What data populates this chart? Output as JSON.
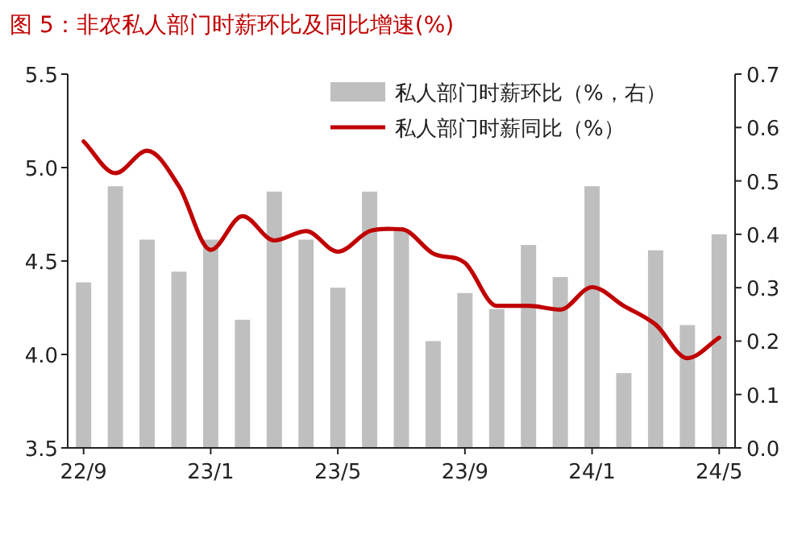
{
  "chart_data": {
    "type": "bar",
    "title": "图 5：非农私人部门时薪环比及同比增速(%)",
    "categories": [
      "22/9",
      null,
      null,
      null,
      "23/1",
      null,
      null,
      null,
      "23/5",
      null,
      null,
      null,
      "23/9",
      null,
      null,
      null,
      "24/1",
      null,
      null,
      null,
      "24/5"
    ],
    "series": [
      {
        "name": "私人部门时薪环比（%，右）",
        "axis": "y2",
        "color": "#bfbfbf",
        "values": [
          0.31,
          0.49,
          0.39,
          0.33,
          0.39,
          0.24,
          0.48,
          0.39,
          0.3,
          0.48,
          0.41,
          0.2,
          0.29,
          0.26,
          0.38,
          0.32,
          0.49,
          0.14,
          0.37,
          0.23,
          0.4
        ]
      },
      {
        "name": "私人部门时薪同比（%）",
        "type": "line",
        "axis": "y",
        "color": "#c00000",
        "values": [
          5.14,
          4.97,
          5.09,
          4.9,
          4.56,
          4.74,
          4.61,
          4.66,
          4.55,
          4.66,
          4.67,
          4.54,
          4.49,
          4.26,
          4.26,
          4.24,
          4.36,
          4.26,
          4.16,
          3.98,
          4.09
        ]
      }
    ],
    "ylim": [
      3.5,
      5.5
    ],
    "yticks": [
      {
        "value": 3.5,
        "label": "3.5"
      },
      {
        "value": 4,
        "label": "4.0"
      },
      {
        "value": 4.5,
        "label": "4.5"
      },
      {
        "value": 5,
        "label": "5.0"
      },
      {
        "value": 5.5,
        "label": "5.5"
      }
    ],
    "y2lim": [
      0,
      0.7
    ],
    "y2ticks": [
      {
        "value": 0,
        "label": "0.0"
      },
      {
        "value": 0.1,
        "label": "0.1"
      },
      {
        "value": 0.2,
        "label": "0.2"
      },
      {
        "value": 0.3,
        "label": "0.3"
      },
      {
        "value": 0.4,
        "label": "0.4"
      },
      {
        "value": 0.5,
        "label": "0.5"
      },
      {
        "value": 0.6,
        "label": "0.6"
      },
      {
        "value": 0.7,
        "label": "0.7"
      }
    ],
    "legend": "top right",
    "grid": false
  }
}
